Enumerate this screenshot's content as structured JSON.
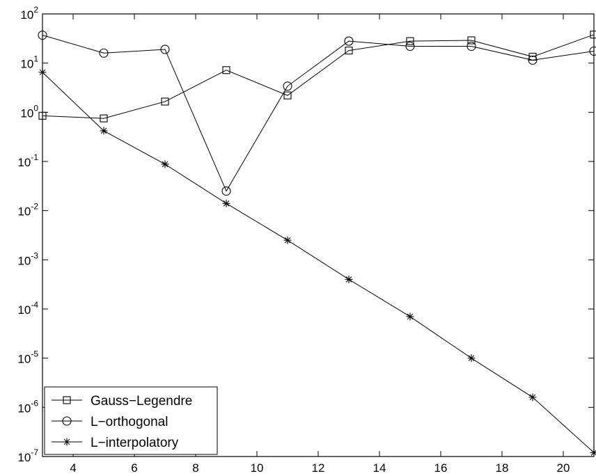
{
  "chart_data": {
    "type": "line",
    "title": "",
    "xlabel": "",
    "ylabel": "",
    "yscale": "log",
    "xlim": [
      3,
      21
    ],
    "ylim": [
      1e-07,
      100
    ],
    "grid": false,
    "legend_position": "bottom-left",
    "x_ticks": [
      4,
      6,
      8,
      10,
      12,
      14,
      16,
      18,
      20
    ],
    "y_tick_exponents": [
      -7,
      -6,
      -5,
      -4,
      -3,
      -2,
      -1,
      0,
      1,
      2
    ],
    "y_tick_base": "10",
    "series": [
      {
        "name": "Gauss−Legendre",
        "marker": "square",
        "x": [
          3,
          5,
          7,
          9,
          11,
          13,
          15,
          17,
          19,
          21
        ],
        "y": [
          0.85,
          0.75,
          1.65,
          7.2,
          2.2,
          18,
          28,
          29,
          13.5,
          38
        ]
      },
      {
        "name": "L−orthogonal",
        "marker": "circle",
        "x": [
          3,
          5,
          7,
          9,
          11,
          13,
          15,
          17,
          19,
          21
        ],
        "y": [
          37,
          16,
          19,
          0.025,
          3.4,
          28,
          22,
          22,
          11.5,
          17.5
        ]
      },
      {
        "name": "L−interpolatory",
        "marker": "star",
        "x": [
          3,
          5,
          7,
          9,
          11,
          13,
          15,
          17,
          19,
          21
        ],
        "y": [
          6.5,
          0.42,
          0.088,
          0.014,
          0.0025,
          0.0004,
          7e-05,
          1e-05,
          1.6e-06,
          1.2e-07
        ]
      }
    ]
  }
}
